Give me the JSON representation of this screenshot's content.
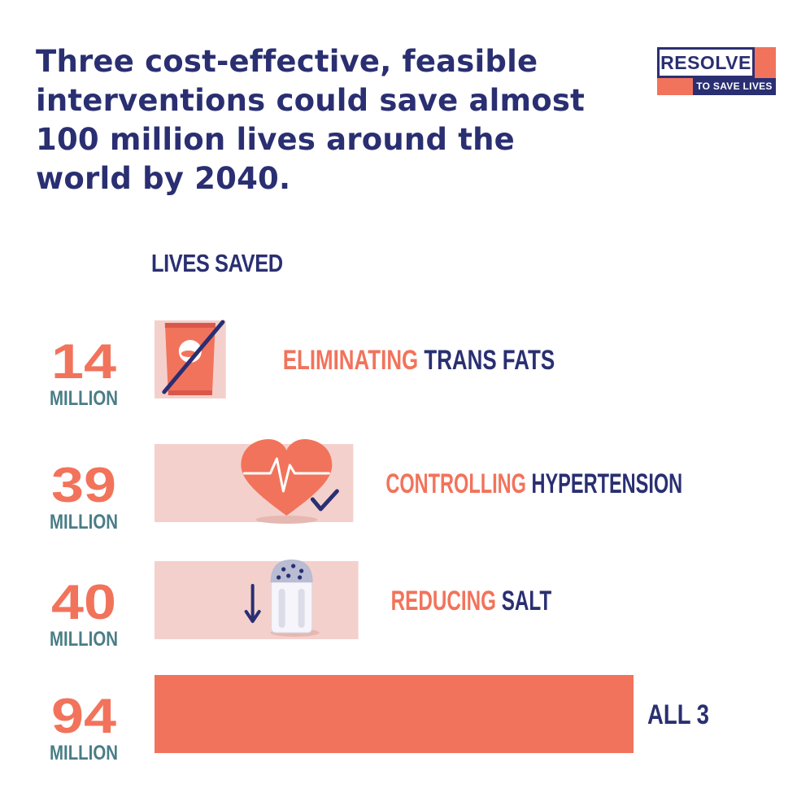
{
  "headline": "Three cost-effective, feasible interventions could save almost 100 million lives around the world by 2040.",
  "logo": {
    "word": "RESOLVE",
    "tagline": "TO SAVE LIVES"
  },
  "colors": {
    "navy": "#2a2f72",
    "orange": "#f2735b",
    "pink": "#f4d0cc",
    "teal": "#4a7d86"
  },
  "chart_data": {
    "type": "bar",
    "orientation": "horizontal",
    "ylabel": "LIVES SAVED",
    "unit": "MILLION",
    "xlim": [
      0,
      94
    ],
    "categories": [
      "TRANS FATS",
      "HYPERTENSION",
      "SALT",
      "ALL 3"
    ],
    "prefixes": [
      "ELIMINATING",
      "CONTROLLING",
      "REDUCING",
      ""
    ],
    "values": [
      14,
      39,
      40,
      94
    ],
    "value_labels": [
      "14",
      "39",
      "40",
      "94"
    ],
    "icons": [
      "snack-bag-crossed-icon",
      "heart-pulse-check-icon",
      "salt-shaker-down-icon",
      ""
    ]
  }
}
